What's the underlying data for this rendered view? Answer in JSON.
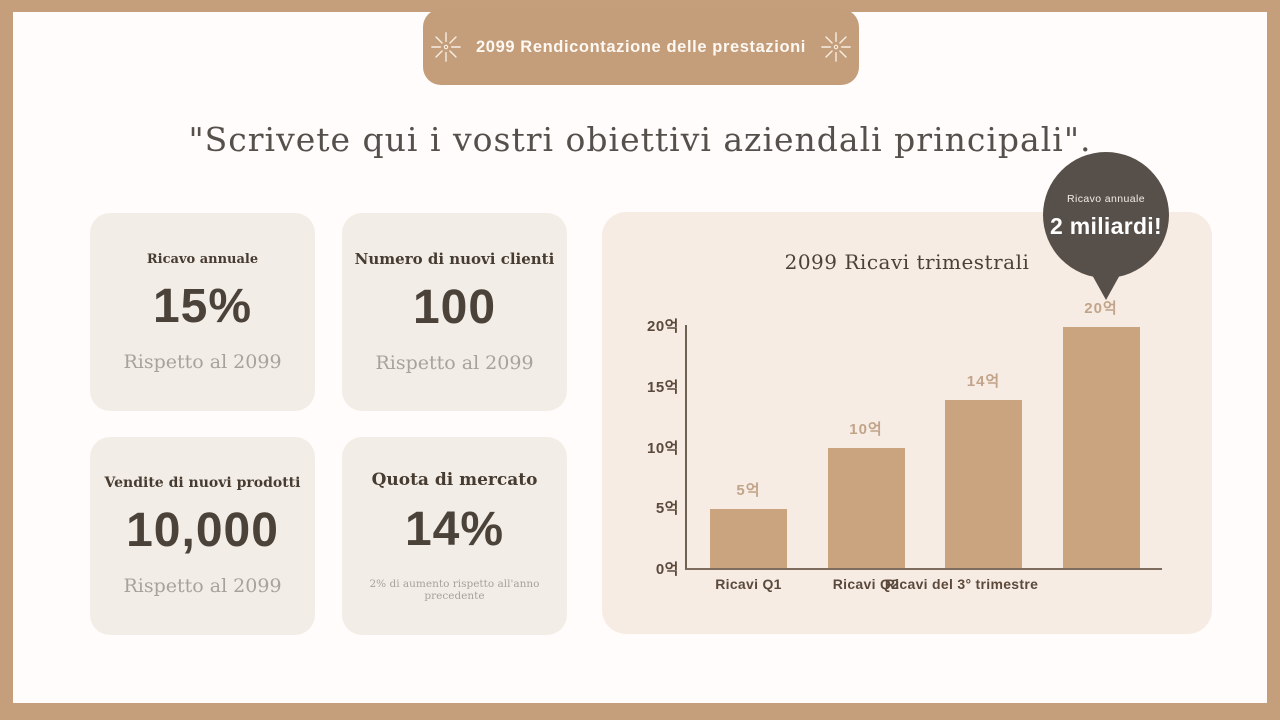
{
  "header": {
    "title": "2099 Rendicontazione delle prestazioni",
    "icon": "sparkle-icon"
  },
  "main_title": "\"Scrivete qui i vostri obiettivi aziendali principali\".",
  "cards": [
    {
      "label": "Ricavo annuale",
      "value": "15%",
      "caption": "Rispetto al 2099"
    },
    {
      "label": "Numero di nuovi clienti",
      "value": "100",
      "caption": "Rispetto al 2099"
    },
    {
      "label": "Vendite di nuovi prodotti",
      "value": "10,000",
      "caption": "Rispetto al 2099"
    },
    {
      "label": "Quota di mercato",
      "value": "14%",
      "caption": "2% di aumento rispetto all'anno precedente"
    }
  ],
  "callout": {
    "label": "Ricavo annuale",
    "value": "2 miliardi!",
    "background": "#57504a",
    "text_color": "#ffffff"
  },
  "chart_data": {
    "type": "bar",
    "title": "2099 Ricavi trimestrali",
    "categories": [
      "Ricavi Q1",
      "Ricavi Q2",
      "Ricavi del 3° trimestre",
      ""
    ],
    "values": [
      5,
      10,
      14,
      20
    ],
    "value_labels": [
      "5억",
      "10억",
      "14억",
      "20억"
    ],
    "unit": "억",
    "y_ticks": [
      "0억",
      "5억",
      "10억",
      "15억",
      "20억"
    ],
    "y_tick_values": [
      0,
      5,
      10,
      15,
      20
    ],
    "ylim": [
      0,
      20
    ],
    "grid": false,
    "legend": false,
    "bar_color": "#c9a47e",
    "panel_background": "#f7ece3"
  },
  "colors": {
    "frame": "#c59e7b",
    "canvas": "#fffcfb",
    "badge": "#c49d7a",
    "card_background": "#f3ede7",
    "dark_text": "#4b423a",
    "muted_text": "#a8a29d",
    "axis_text": "#5b4a3c",
    "bar": "#c9a47e",
    "callout": "#57504a"
  }
}
